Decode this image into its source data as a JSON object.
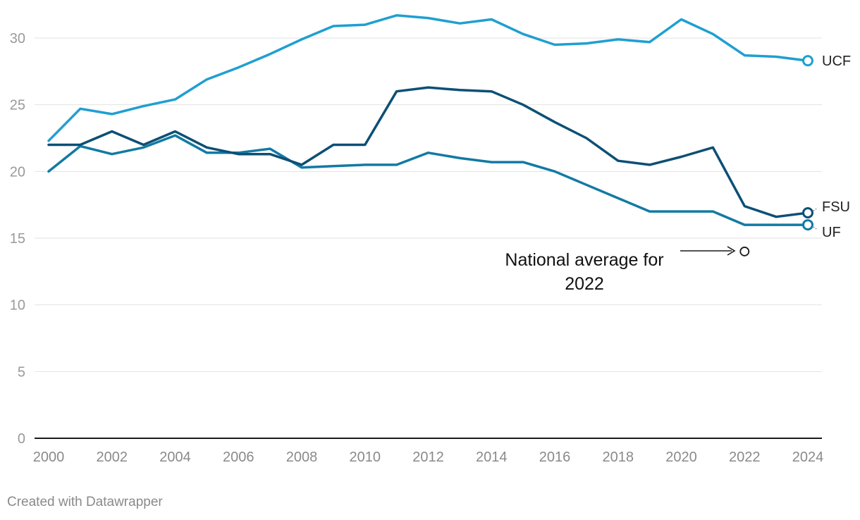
{
  "chart_data": {
    "type": "line",
    "title": "",
    "xlabel": "",
    "ylabel": "",
    "x": [
      2000,
      2001,
      2002,
      2003,
      2004,
      2005,
      2006,
      2007,
      2008,
      2009,
      2010,
      2011,
      2012,
      2013,
      2014,
      2015,
      2016,
      2017,
      2018,
      2019,
      2020,
      2021,
      2022,
      2023,
      2024
    ],
    "xticks": [
      "2000",
      "2002",
      "2004",
      "2006",
      "2008",
      "2010",
      "2012",
      "2014",
      "2016",
      "2018",
      "2020",
      "2022",
      "2024"
    ],
    "xticks_values": [
      2000,
      2002,
      2004,
      2006,
      2008,
      2010,
      2012,
      2014,
      2016,
      2018,
      2020,
      2022,
      2024
    ],
    "yticks": [
      "0",
      "5",
      "10",
      "15",
      "20",
      "25",
      "30"
    ],
    "yticks_values": [
      0,
      5,
      10,
      15,
      20,
      25,
      30
    ],
    "xlim": [
      2000,
      2024
    ],
    "ylim": [
      0,
      31.5
    ],
    "grid": true,
    "series": [
      {
        "name": "UCF",
        "color": "#1f9fd1",
        "values": [
          22.3,
          24.7,
          24.3,
          24.9,
          25.4,
          26.9,
          27.8,
          28.8,
          29.9,
          30.9,
          31.0,
          31.7,
          31.5,
          31.1,
          31.4,
          30.3,
          29.5,
          29.6,
          29.9,
          29.7,
          31.4,
          30.3,
          28.7,
          28.6,
          28.3
        ]
      },
      {
        "name": "FSU",
        "color": "#0c4f75",
        "values": [
          22.0,
          22.0,
          23.0,
          22.0,
          23.0,
          21.8,
          21.3,
          21.3,
          20.5,
          22.0,
          22.0,
          26.0,
          26.3,
          26.1,
          26.0,
          25.0,
          23.7,
          22.5,
          20.8,
          20.5,
          21.1,
          21.8,
          17.4,
          16.6,
          16.9
        ]
      },
      {
        "name": "UF",
        "color": "#127aa3",
        "values": [
          20.0,
          21.9,
          21.3,
          21.8,
          22.7,
          21.4,
          21.4,
          21.7,
          20.3,
          20.4,
          20.5,
          20.5,
          21.4,
          21.0,
          20.7,
          20.7,
          20.0,
          19.0,
          18.0,
          17.0,
          17.0,
          17.0,
          16.0,
          16.0,
          16.0
        ]
      }
    ],
    "annotation": {
      "text_line1": "National average for",
      "text_line2": "2022",
      "x": 2022,
      "y": 14.0
    }
  },
  "footer": {
    "credit": "Created with Datawrapper"
  }
}
